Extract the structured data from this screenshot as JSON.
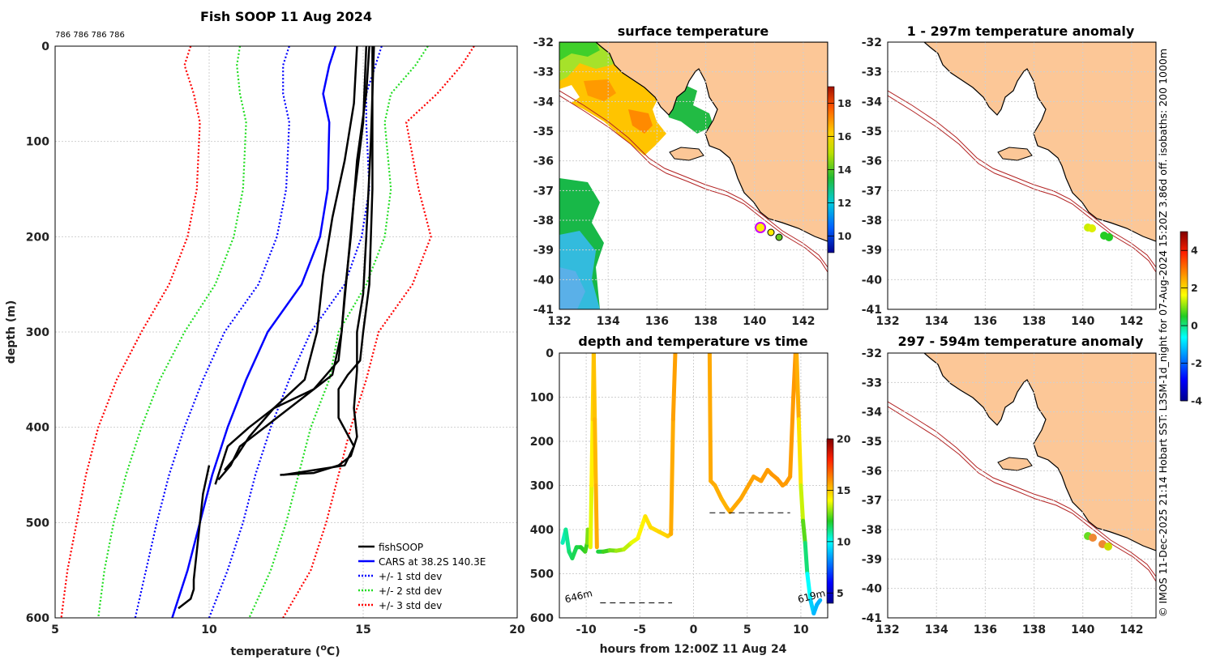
{
  "colors": {
    "land": "#fcc797",
    "coast": "#000000",
    "isobath": "#b22222",
    "fishsoop": "#000000",
    "cars": "#0000ff",
    "std1": "#0000ff",
    "std2": "#22dd22",
    "std3": "#ff0000"
  },
  "chart_data": [
    {
      "id": "profile",
      "type": "line",
      "title": "Fish SOOP 11 Aug 2024",
      "subtitle": "786 786 786 786",
      "xlabel": "temperature (",
      "xlabel_sup": "o",
      "xlabel_tail": "C)",
      "ylabel": "depth (m)",
      "xlim": [
        5,
        20
      ],
      "ylim": [
        600,
        0
      ],
      "xticks": [
        "5",
        "10",
        "15",
        "20"
      ],
      "yticks": [
        "0",
        "100",
        "200",
        "300",
        "400",
        "500",
        "600"
      ],
      "legend": [
        "fishSOOP",
        "CARS at 38.2S 140.3E",
        "+/- 1 std dev",
        "+/- 2 std dev",
        "+/- 3 std dev"
      ],
      "series": [
        {
          "name": "CARS at 38.2S 140.3E",
          "style": "solid",
          "color": "#0000ff",
          "depth": [
            0,
            20,
            50,
            80,
            150,
            200,
            250,
            300,
            350,
            400,
            450,
            500,
            550,
            600
          ],
          "temp": [
            14.1,
            13.9,
            13.7,
            13.9,
            13.85,
            13.6,
            13.0,
            11.9,
            11.2,
            10.6,
            10.1,
            9.7,
            9.3,
            8.8
          ]
        },
        {
          "name": "+/- 1 std dev low",
          "style": "dotted",
          "color": "#0000ff",
          "depth": [
            0,
            20,
            50,
            80,
            150,
            200,
            250,
            300,
            350,
            400,
            450,
            500,
            550,
            600
          ],
          "temp": [
            12.6,
            12.4,
            12.4,
            12.6,
            12.5,
            12.2,
            11.6,
            10.5,
            9.8,
            9.2,
            8.7,
            8.3,
            7.95,
            7.6
          ]
        },
        {
          "name": "+/- 1 std dev high",
          "style": "dotted",
          "color": "#0000ff",
          "depth": [
            0,
            20,
            50,
            80,
            150,
            200,
            250,
            300,
            350,
            400,
            450,
            500,
            550,
            600
          ],
          "temp": [
            15.6,
            15.4,
            15.1,
            15.1,
            15.2,
            14.95,
            14.4,
            13.3,
            12.6,
            12.0,
            11.5,
            11.1,
            10.6,
            10.0
          ]
        },
        {
          "name": "+/- 2 std dev low",
          "style": "dotted",
          "color": "#22dd22",
          "depth": [
            0,
            20,
            50,
            80,
            150,
            200,
            250,
            300,
            350,
            400,
            450,
            500,
            550,
            600
          ],
          "temp": [
            11.0,
            10.9,
            11.0,
            11.2,
            11.1,
            10.8,
            10.2,
            9.2,
            8.4,
            7.8,
            7.3,
            6.9,
            6.6,
            6.4
          ]
        },
        {
          "name": "+/- 2 std dev high",
          "style": "dotted",
          "color": "#22dd22",
          "depth": [
            0,
            20,
            50,
            80,
            150,
            200,
            250,
            300,
            350,
            400,
            450,
            500,
            550,
            600
          ],
          "temp": [
            17.1,
            16.7,
            15.9,
            15.7,
            15.9,
            15.7,
            15.1,
            14.2,
            13.9,
            13.3,
            12.9,
            12.5,
            12.0,
            11.3
          ]
        },
        {
          "name": "+/- 3 std dev low",
          "style": "dotted",
          "color": "#ff0000",
          "depth": [
            0,
            20,
            50,
            80,
            150,
            200,
            250,
            300,
            350,
            400,
            450,
            500,
            550,
            600
          ],
          "temp": [
            9.4,
            9.2,
            9.5,
            9.7,
            9.6,
            9.3,
            8.7,
            7.8,
            7.0,
            6.4,
            6.0,
            5.7,
            5.4,
            5.2
          ]
        },
        {
          "name": "+/- 3 std dev high",
          "style": "dotted",
          "color": "#ff0000",
          "depth": [
            0,
            20,
            50,
            80,
            150,
            200,
            250,
            300,
            350,
            400,
            450,
            500,
            550,
            600
          ],
          "temp": [
            18.6,
            18.2,
            17.4,
            16.4,
            16.8,
            17.2,
            16.6,
            15.5,
            15.1,
            14.6,
            14.2,
            13.8,
            13.3,
            12.4
          ]
        },
        {
          "name": "fishSOOP cast 1",
          "style": "solid",
          "color": "#000000",
          "depth": [
            0,
            60,
            120,
            180,
            240,
            300,
            350,
            380,
            400,
            420,
            440,
            460
          ],
          "temp": [
            14.8,
            14.7,
            14.4,
            14.0,
            13.7,
            13.5,
            13.1,
            12.1,
            11.3,
            10.6,
            10.4,
            10.2
          ]
        },
        {
          "name": "fishSOOP cast 2",
          "style": "solid",
          "color": "#000000",
          "depth": [
            0,
            80,
            160,
            230,
            300,
            345,
            370,
            400,
            420,
            440,
            455
          ],
          "temp": [
            15.1,
            15.0,
            14.7,
            14.5,
            14.3,
            14.0,
            13.0,
            11.8,
            11.0,
            10.7,
            10.3
          ]
        },
        {
          "name": "fishSOOP cast 3",
          "style": "solid",
          "color": "#000000",
          "depth": [
            0,
            50,
            120,
            200,
            260,
            300,
            330,
            360,
            380,
            410,
            430,
            445
          ],
          "temp": [
            15.2,
            15.1,
            14.8,
            14.6,
            14.4,
            14.3,
            14.2,
            13.4,
            12.1,
            11.3,
            10.9,
            10.5
          ]
        },
        {
          "name": "fishSOOP cast 4",
          "style": "solid",
          "color": "#000000",
          "depth": [
            0,
            100,
            200,
            260,
            300,
            340,
            380,
            410,
            430,
            440,
            448,
            450
          ],
          "temp": [
            15.35,
            15.25,
            15.1,
            15.0,
            14.8,
            14.8,
            14.7,
            14.8,
            14.6,
            14.2,
            13.4,
            12.3
          ]
        },
        {
          "name": "fishSOOP cast 5",
          "style": "solid",
          "color": "#000000",
          "depth": [
            0,
            150,
            250,
            300,
            330,
            345,
            360,
            390,
            420,
            440,
            450
          ],
          "temp": [
            15.3,
            15.3,
            15.2,
            15.0,
            14.9,
            14.5,
            14.2,
            14.2,
            14.7,
            14.4,
            12.4
          ]
        },
        {
          "name": "fishSOOP deep",
          "style": "solid",
          "color": "#000000",
          "depth": [
            440,
            470,
            500,
            530,
            560,
            570,
            580,
            590
          ],
          "temp": [
            10.0,
            9.8,
            9.7,
            9.6,
            9.5,
            9.5,
            9.4,
            9.0
          ]
        }
      ]
    },
    {
      "id": "sst",
      "type": "heatmap",
      "title": "surface temperature",
      "xlim": [
        132,
        143
      ],
      "ylim": [
        -41,
        -32
      ],
      "xticks": [
        "132",
        "134",
        "136",
        "138",
        "140",
        "142"
      ],
      "yticks": [
        "-32",
        "-33",
        "-34",
        "-35",
        "-36",
        "-37",
        "-38",
        "-39",
        "-40",
        "-41"
      ],
      "colorbar": {
        "range": [
          9,
          19
        ],
        "ticks": [
          "10",
          "12",
          "14",
          "16",
          "18"
        ]
      },
      "markers": [
        {
          "lon": 140.3,
          "lat": -38.2,
          "color": "#ffee00",
          "ring": "#cc00ff"
        },
        {
          "lon": 140.6,
          "lat": -38.4,
          "color": "#ffee00"
        },
        {
          "lon": 140.85,
          "lat": -38.5,
          "color": "#ffee00"
        },
        {
          "lon": 141.1,
          "lat": -38.55,
          "color": "#22aa22"
        }
      ]
    },
    {
      "id": "anom_upper",
      "type": "heatmap",
      "title": "1 - 297m temperature anomaly",
      "xlim": [
        132,
        143
      ],
      "ylim": [
        -41,
        -32
      ],
      "xticks": [
        "132",
        "134",
        "136",
        "138",
        "140",
        "142"
      ],
      "yticks": [
        "-32",
        "-33",
        "-34",
        "-35",
        "-36",
        "-37",
        "-38",
        "-39",
        "-40",
        "-41"
      ],
      "colorbar": {
        "range": [
          -4,
          5
        ],
        "ticks": [
          "-4",
          "-2",
          "0",
          "2",
          "4"
        ]
      },
      "markers": [
        {
          "lon": 140.3,
          "lat": -38.25,
          "color": "#ccee00"
        },
        {
          "lon": 140.4,
          "lat": -38.25,
          "color": "#ddee00"
        },
        {
          "lon": 141.0,
          "lat": -38.5,
          "color": "#22cc22"
        },
        {
          "lon": 141.1,
          "lat": -38.55,
          "color": "#22cc22"
        }
      ]
    },
    {
      "id": "anom_lower",
      "type": "heatmap",
      "title": "297 - 594m temperature anomaly",
      "xlim": [
        132,
        143
      ],
      "ylim": [
        -41,
        -32
      ],
      "xticks": [
        "132",
        "134",
        "136",
        "138",
        "140",
        "142"
      ],
      "yticks": [
        "-32",
        "-33",
        "-34",
        "-35",
        "-36",
        "-37",
        "-38",
        "-39",
        "-40",
        "-41"
      ],
      "markers": [
        {
          "lon": 140.3,
          "lat": -38.25,
          "color": "#66dd22"
        },
        {
          "lon": 140.5,
          "lat": -38.3,
          "color": "#ee8833"
        },
        {
          "lon": 141.0,
          "lat": -38.5,
          "color": "#ee8833"
        },
        {
          "lon": 141.2,
          "lat": -38.6,
          "color": "#ccdd00"
        }
      ]
    },
    {
      "id": "timeseries",
      "type": "line",
      "title": "depth and temperature vs time",
      "xlabel": "hours from 12:00Z 11 Aug 24",
      "xlim": [
        -12.5,
        12.5
      ],
      "ylim": [
        600,
        0
      ],
      "xticks": [
        "-10",
        "-5",
        "0",
        "5",
        "10"
      ],
      "yticks": [
        "0",
        "100",
        "200",
        "300",
        "400",
        "500",
        "600"
      ],
      "colorbar": {
        "range": [
          4,
          20
        ],
        "ticks": [
          "5",
          "10",
          "15",
          "20"
        ]
      },
      "annotations": [
        {
          "label": "646m",
          "x": -11.9,
          "y": 566
        },
        {
          "label": "619m",
          "x": 9.8,
          "y": 566
        }
      ],
      "bottom_dashes": [
        {
          "x0": -8.7,
          "x1": -2.0,
          "depth": 566
        },
        {
          "x0": 1.5,
          "x1": 9.0,
          "depth": 362
        }
      ],
      "series": [
        {
          "name": "segment 1",
          "time": [
            -12.2,
            -11.9,
            -11.6,
            -11.3,
            -10.9,
            -10.5,
            -10.1,
            -9.9,
            -9.85
          ],
          "depth": [
            430,
            400,
            450,
            465,
            440,
            440,
            450,
            430,
            400
          ],
          "temp": [
            10.5,
            10.8,
            11.2,
            11.5,
            11.6,
            11.8,
            12.0,
            12.5,
            13.2
          ]
        },
        {
          "name": "cast A",
          "time": [
            -9.6,
            -9.5,
            -9.4,
            -9.3,
            -9.2,
            -9.1,
            -9.0
          ],
          "depth": [
            440,
            300,
            150,
            0,
            150,
            300,
            440
          ],
          "temp": [
            13.5,
            14.0,
            14.5,
            15.0,
            15.2,
            15.4,
            15.6
          ]
        },
        {
          "name": "segment 2",
          "time": [
            -8.9,
            -8.4,
            -7.8,
            -7.2,
            -6.5,
            -5.8,
            -5.2,
            -4.5,
            -4.0,
            -3.2,
            -2.4,
            -2.1
          ],
          "depth": [
            450,
            450,
            447,
            448,
            445,
            430,
            420,
            370,
            395,
            405,
            415,
            410
          ],
          "temp": [
            11.5,
            12.0,
            12.5,
            13.0,
            13.2,
            13.6,
            14.0,
            14.4,
            14.6,
            14.7,
            14.8,
            15.0
          ]
        },
        {
          "name": "cast B",
          "time": [
            -2.1,
            -1.9,
            -1.7
          ],
          "depth": [
            410,
            150,
            0
          ],
          "temp": [
            15.4,
            15.6,
            15.8
          ]
        },
        {
          "name": "segment 3",
          "time": [
            1.5,
            1.6,
            2.0,
            2.6,
            3.1,
            3.4,
            3.9,
            4.4,
            5.0,
            5.6,
            6.3,
            6.9,
            7.3,
            7.8,
            8.3,
            8.6,
            9.0
          ],
          "depth": [
            0,
            290,
            300,
            330,
            350,
            360,
            345,
            330,
            305,
            280,
            290,
            265,
            275,
            285,
            300,
            295,
            280
          ],
          "temp": [
            15.6,
            15.5,
            15.5,
            15.4,
            15.3,
            15.5,
            15.5,
            15.6,
            15.6,
            15.7,
            15.7,
            15.8,
            15.8,
            15.9,
            15.8,
            15.8,
            15.8
          ]
        },
        {
          "name": "cast C",
          "time": [
            9.0,
            9.3,
            9.5
          ],
          "depth": [
            280,
            100,
            0
          ],
          "temp": [
            15.8,
            15.8,
            15.9
          ]
        },
        {
          "name": "final descent",
          "time": [
            9.6,
            9.8,
            10.0,
            10.2,
            10.4,
            10.6,
            10.9,
            11.2,
            11.5,
            11.8
          ],
          "depth": [
            0,
            150,
            300,
            380,
            430,
            500,
            560,
            590,
            570,
            560
          ],
          "temp": [
            15.9,
            15.0,
            14.0,
            13.0,
            12.0,
            10.5,
            9.5,
            9.0,
            8.8,
            8.8
          ]
        }
      ]
    }
  ],
  "side_note": "© IMOS 11-Dec-2025 21:14 Hobart SST: L3SM-1d_night for 07-Aug-2024 15:20Z 3.86d off. isobaths: 200  1000m"
}
